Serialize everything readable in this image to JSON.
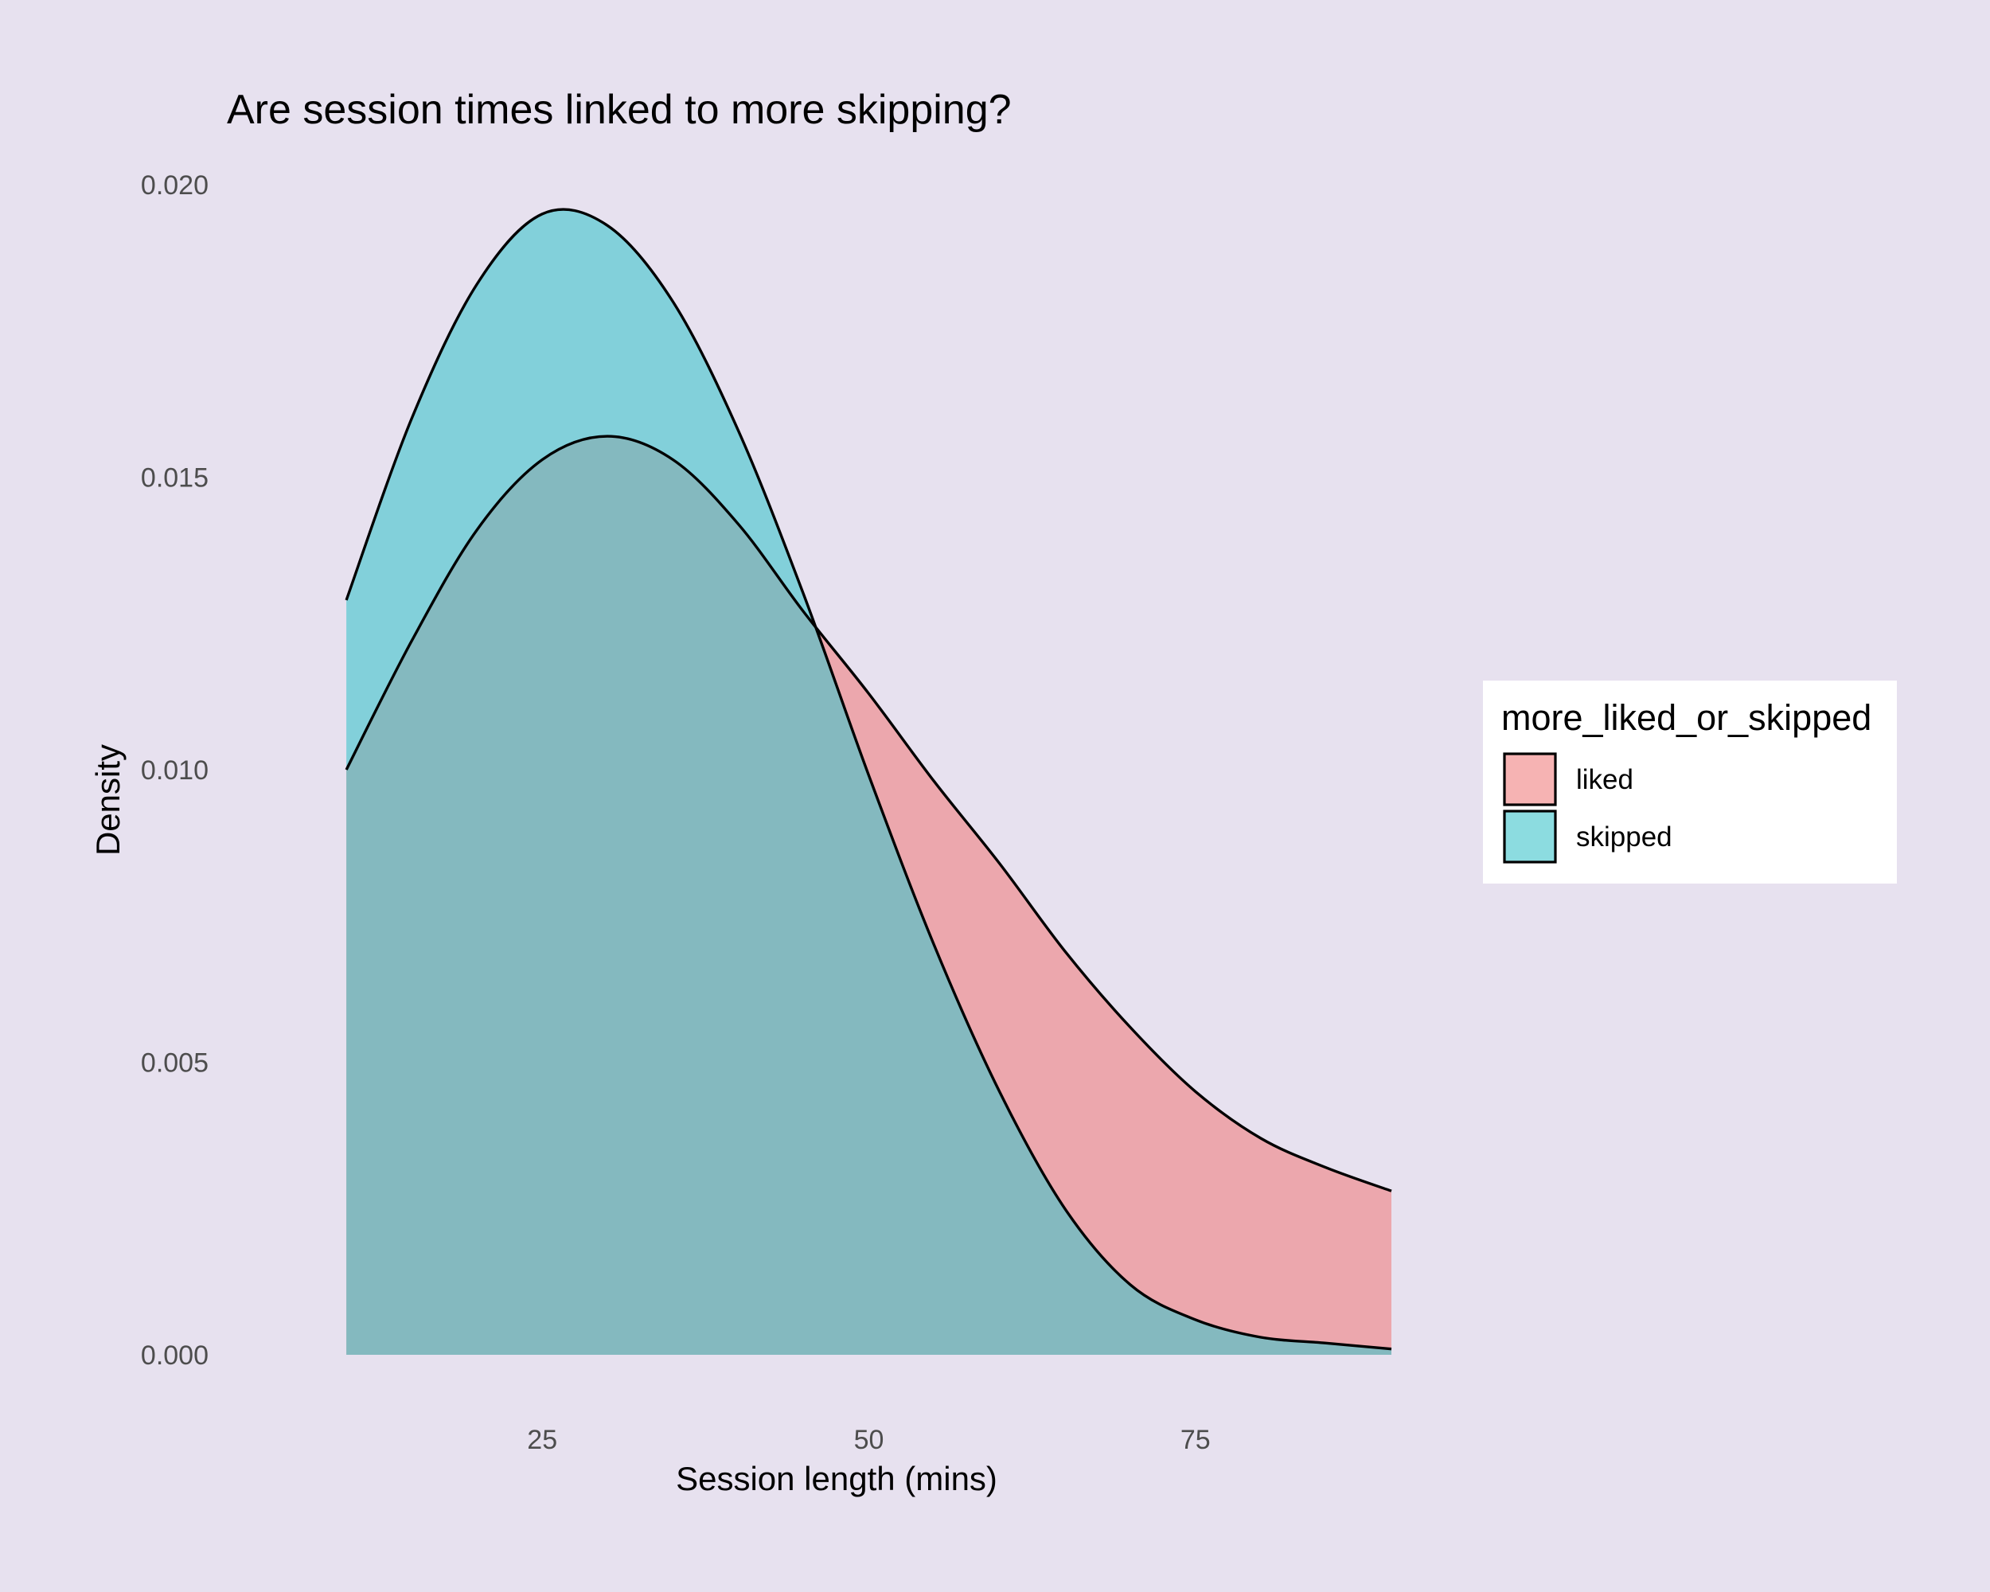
{
  "colors": {
    "page_background": "#e7e1ef",
    "liked": "#f08080",
    "skipped": "#40c4cc",
    "outline": "#000000",
    "legend_background": "#ffffff"
  },
  "chart_data": {
    "type": "area",
    "title": "Are session times linked to more skipping?",
    "xlabel": "Session length (mins)",
    "ylabel": "Density",
    "xlim": [
      5,
      90
    ],
    "ylim": [
      0,
      0.02
    ],
    "x_ticks": [
      {
        "value": 25,
        "label": "25"
      },
      {
        "value": 50,
        "label": "50"
      },
      {
        "value": 75,
        "label": "75"
      }
    ],
    "y_ticks": [
      {
        "value": 0,
        "label": "0.000"
      },
      {
        "value": 0.005,
        "label": "0.005"
      },
      {
        "value": 0.01,
        "label": "0.010"
      },
      {
        "value": 0.015,
        "label": "0.015"
      },
      {
        "value": 0.02,
        "label": "0.020"
      }
    ],
    "grid": false,
    "fill_alpha": 0.6,
    "legend": {
      "title": "more_liked_or_skipped",
      "position": "right"
    },
    "series": [
      {
        "name": "liked",
        "color": "#f08080",
        "x": [
          10,
          15,
          20,
          25,
          30,
          35,
          40,
          45,
          50,
          55,
          60,
          65,
          70,
          75,
          80,
          85,
          90
        ],
        "y": [
          0.01,
          0.0122,
          0.0141,
          0.0153,
          0.0157,
          0.0153,
          0.0142,
          0.0127,
          0.0113,
          0.0098,
          0.0084,
          0.0069,
          0.0056,
          0.0045,
          0.0037,
          0.0032,
          0.0028
        ]
      },
      {
        "name": "skipped",
        "color": "#40c4cc",
        "x": [
          10,
          15,
          20,
          25,
          30,
          35,
          40,
          45,
          50,
          55,
          60,
          65,
          70,
          75,
          80,
          85,
          90
        ],
        "y": [
          0.0129,
          0.016,
          0.0183,
          0.0195,
          0.0193,
          0.018,
          0.0158,
          0.013,
          0.0099,
          0.007,
          0.0045,
          0.0025,
          0.0012,
          0.0006,
          0.0003,
          0.0002,
          0.0001
        ]
      }
    ]
  }
}
